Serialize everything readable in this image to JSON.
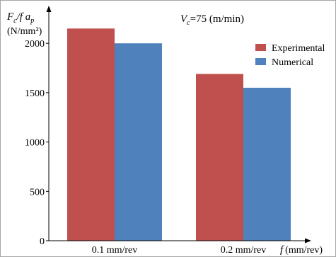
{
  "chart_data": {
    "type": "bar",
    "annotation": "=75 (m/min)",
    "annotation_symbol": "V",
    "annotation_subscript": "c",
    "ylabel_parts": {
      "F": "F",
      "sub_c": "c",
      "slash_f": "/f a",
      "sub_p": "p"
    },
    "yunit": "(N/mm²)",
    "xlabel_symbol": "f",
    "xlabel_unit": "(mm/rev)",
    "categories": [
      "0.1 mm/rev",
      "0.2 mm/rev"
    ],
    "series": [
      {
        "name": "Experimental",
        "values": [
          2150,
          1690
        ]
      },
      {
        "name": "Numerical",
        "values": [
          2000,
          1550
        ]
      }
    ],
    "yticks": [
      0,
      500,
      1000,
      1500,
      2000
    ],
    "ytick_labels": [
      "0",
      "500",
      "1000",
      "1500",
      "2000"
    ],
    "ylim": [
      0,
      2350
    ],
    "grid": false,
    "legend_position": "top-right",
    "colors": {
      "Experimental": "#c0504d",
      "Numerical": "#4f81bd",
      "axis": "#000000"
    }
  }
}
